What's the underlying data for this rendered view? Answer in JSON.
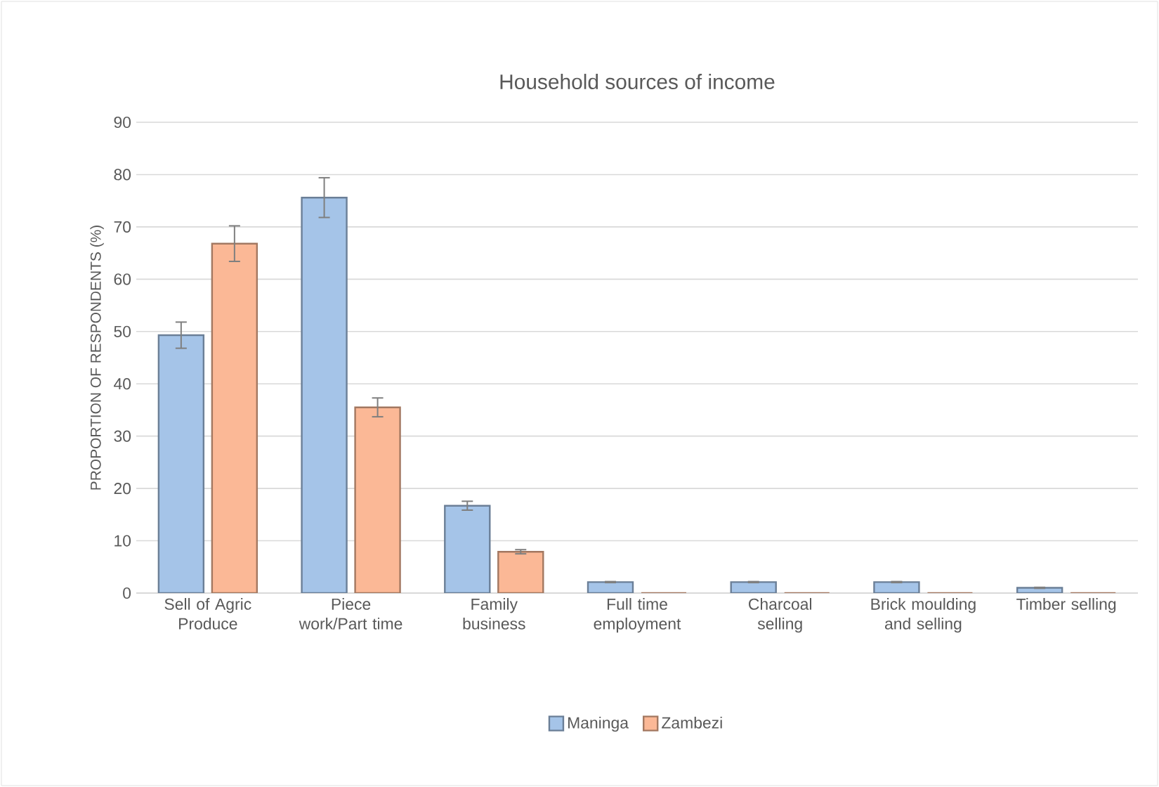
{
  "chart_data": {
    "type": "bar",
    "title": "Household sources of income",
    "ylabel": "PROPORTION OF RESPONDENTS (%)",
    "categories": [
      "Sell of Agric Produce",
      "Piece work/Part time",
      "Family business",
      "Full time employment",
      "Charcoal selling",
      "Brick moulding and selling",
      "Timber selling"
    ],
    "series": [
      {
        "name": "Maninga",
        "color": "#a5c4e8",
        "values": [
          49.3,
          75.6,
          16.7,
          2.1,
          2.1,
          2.1,
          1.0
        ],
        "errors": [
          2.5,
          3.8,
          0.85,
          0.1,
          0.1,
          0.1,
          0.1
        ]
      },
      {
        "name": "Zambezi",
        "color": "#fbb896",
        "values": [
          66.8,
          35.5,
          7.9,
          0,
          0,
          0,
          0
        ],
        "errors": [
          3.4,
          1.8,
          0.4,
          null,
          null,
          null,
          null
        ]
      }
    ],
    "ylim": [
      0,
      90
    ],
    "yticks": [
      0,
      10,
      20,
      30,
      40,
      50,
      60,
      70,
      80,
      90
    ],
    "grid": "y",
    "legend": "bottom"
  }
}
